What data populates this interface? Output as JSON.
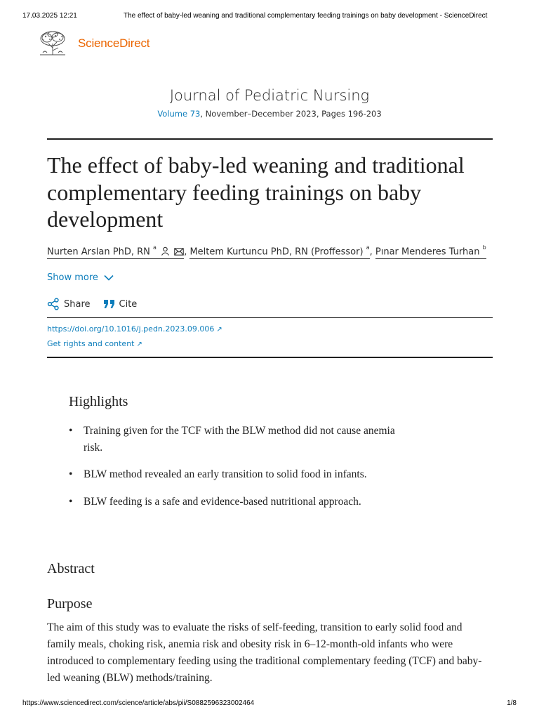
{
  "print_header": {
    "date": "17.03.2025 12:21",
    "title": "The effect of baby-led weaning and traditional complementary feeding trainings on baby development - ScienceDirect"
  },
  "brand": {
    "name": "ScienceDirect",
    "logo_icon": "elsevier-tree-icon",
    "color": "#eb6500"
  },
  "journal": {
    "title": "Journal of Pediatric Nursing",
    "volume_link": "Volume 73",
    "details": ", November–December 2023, Pages 196-203",
    "link_color": "#0c7dbb"
  },
  "article": {
    "title": "The effect of baby-led weaning and traditional complementary feeding trainings on baby development",
    "authors": [
      {
        "name": "Nurten Arslan PhD, RN",
        "sup": "a"
      },
      {
        "name": "Meltem Kurtuncu PhD, RN (Proffessor)",
        "sup": "a"
      },
      {
        "name": "Pınar Menderes Turhan",
        "sup": "b"
      }
    ],
    "separator": ",",
    "show_more": "Show more",
    "share": "Share",
    "cite": "Cite",
    "doi": "https://doi.org/10.1016/j.pedn.2023.09.006",
    "rights": "Get rights and content"
  },
  "highlights": {
    "heading": "Highlights",
    "items": [
      "Training given for the TCF with the BLW method did not cause anemia risk.",
      "BLW method revealed an early transition to solid food in infants.",
      "BLW feeding is a safe and evidence-based nutritional approach."
    ]
  },
  "abstract": {
    "heading": "Abstract",
    "purpose_heading": "Purpose",
    "purpose_text": "The aim of this study was to evaluate the risks of self-feeding, transition to early solid food and family meals, choking risk, anemia risk and obesity risk in 6–12-month-old infants who were introduced to complementary feeding using the traditional complementary feeding (TCF) and baby-led weaning (BLW) methods/training."
  },
  "print_footer": {
    "url": "https://www.sciencedirect.com/science/article/abs/pii/S0882596323002464",
    "page": "1/8"
  }
}
